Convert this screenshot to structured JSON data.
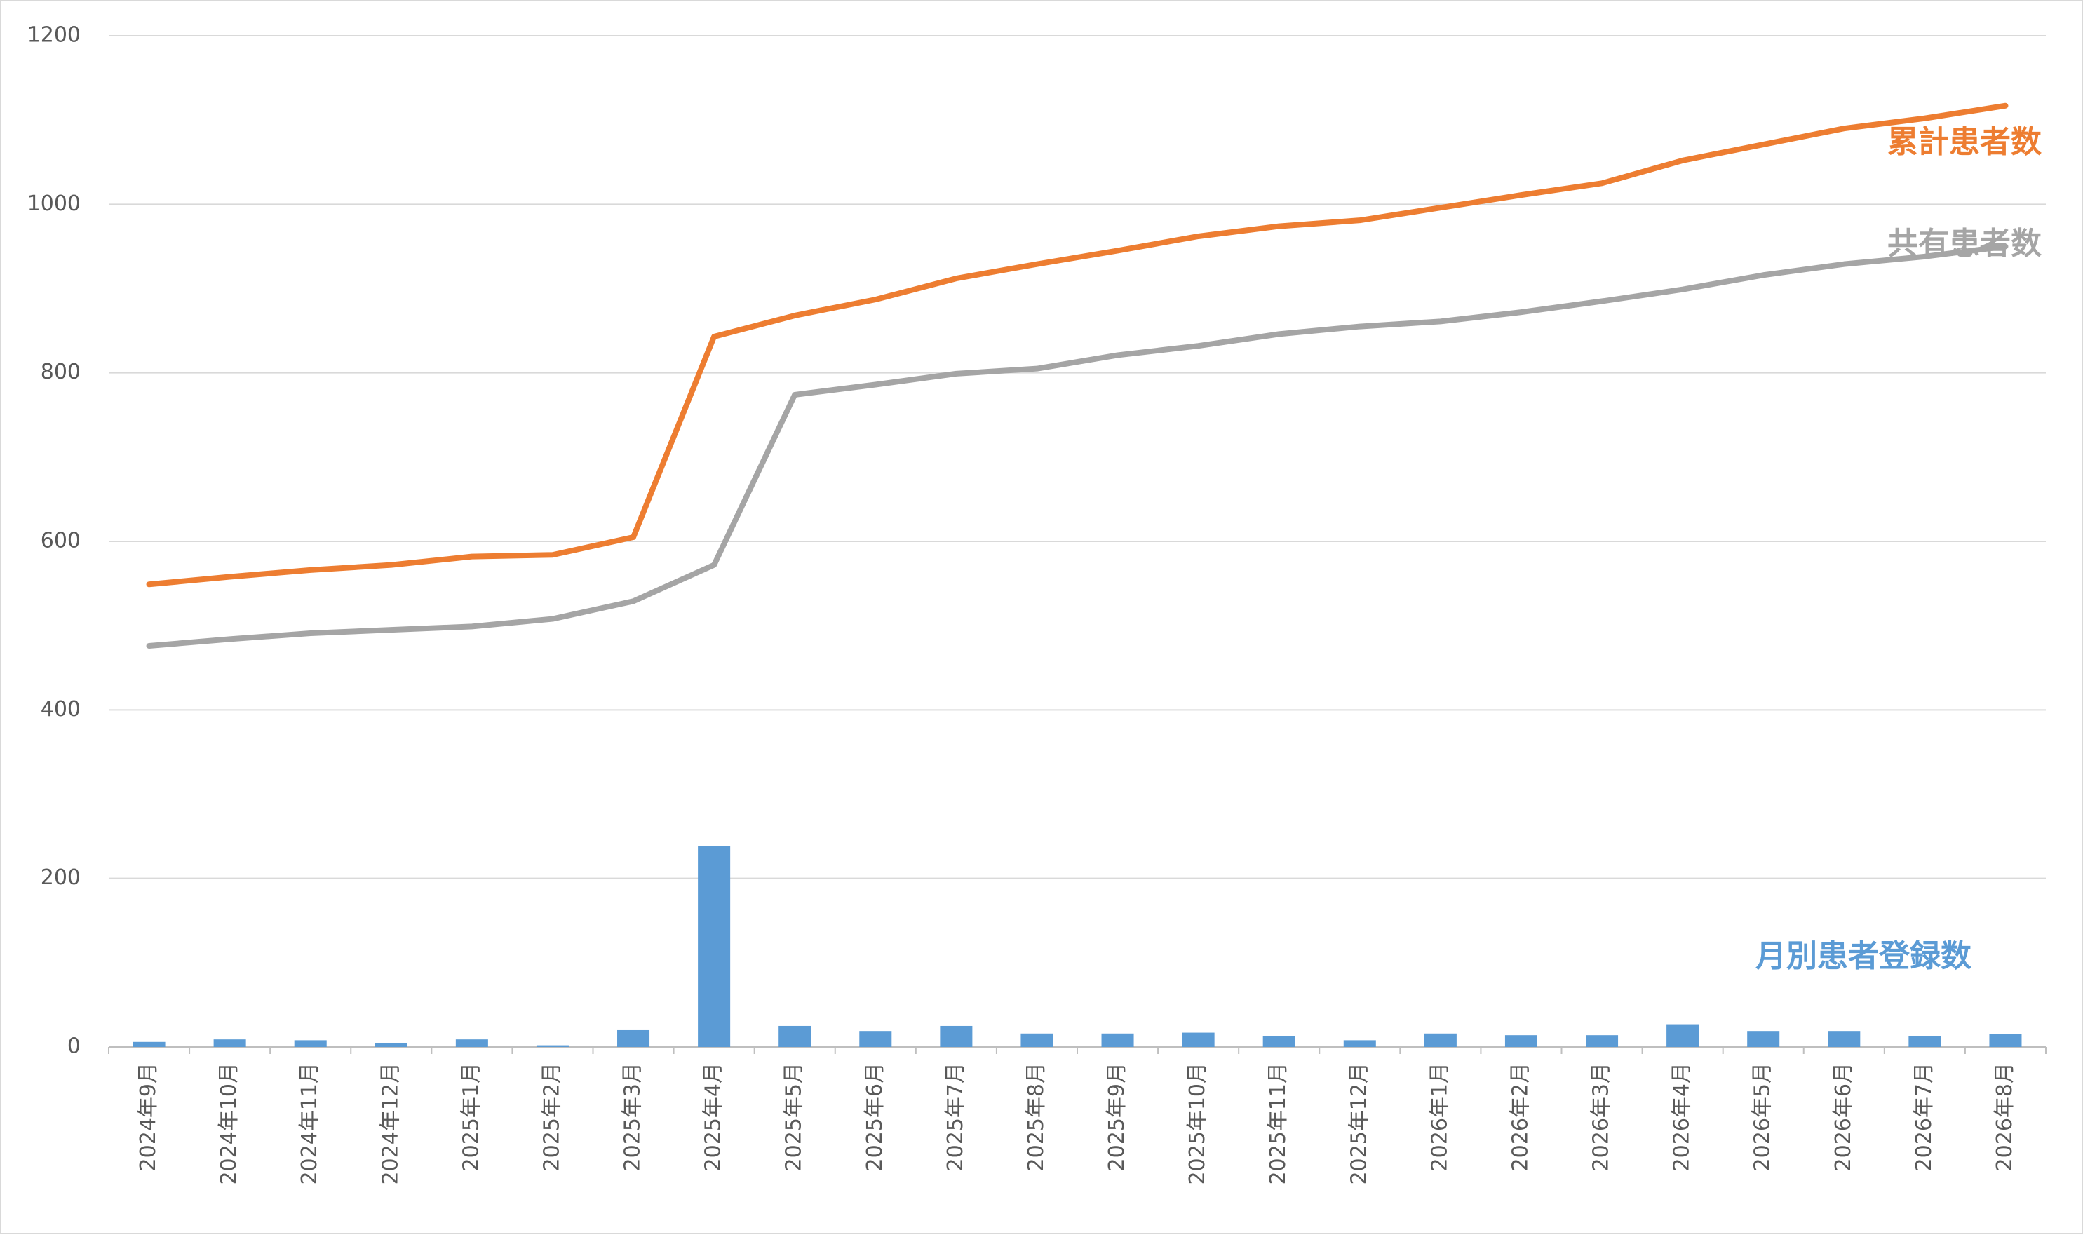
{
  "chart_data": {
    "type": "combo",
    "categories": [
      "2024年9月",
      "2024年10月",
      "2024年11月",
      "2024年12月",
      "2025年1月",
      "2025年2月",
      "2025年3月",
      "2025年4月",
      "2025年5月",
      "2025年6月",
      "2025年7月",
      "2025年8月",
      "2025年9月",
      "2025年10月",
      "2025年11月",
      "2025年12月",
      "2026年1月",
      "2026年2月",
      "2026年3月",
      "2026年4月",
      "2026年5月",
      "2026年6月",
      "2026年7月",
      "2026年8月"
    ],
    "series": [
      {
        "name": "月別患者登録数",
        "type": "bar",
        "color": "#5b9bd5",
        "values": [
          6,
          9,
          8,
          5,
          9,
          2,
          20,
          238,
          25,
          19,
          25,
          16,
          16,
          17,
          13,
          8,
          16,
          14,
          14,
          27,
          19,
          19,
          13,
          15
        ]
      },
      {
        "name": "累計患者数",
        "type": "line",
        "color": "#ed7d31",
        "values": [
          549,
          558,
          566,
          572,
          582,
          584,
          605,
          843,
          868,
          887,
          912,
          929,
          945,
          962,
          974,
          981,
          996,
          1011,
          1025,
          1052,
          1071,
          1090,
          1102,
          1117
        ]
      },
      {
        "name": "共有患者数",
        "type": "line",
        "color": "#a5a5a5",
        "values": [
          476,
          484,
          491,
          495,
          499,
          508,
          529,
          572,
          774,
          786,
          799,
          805,
          821,
          832,
          846,
          855,
          861,
          872,
          885,
          899,
          916,
          929,
          938,
          950
        ]
      }
    ],
    "ylim": [
      0,
      1200
    ],
    "yticks": [
      0,
      200,
      400,
      600,
      800,
      1000,
      1200
    ],
    "grid": true
  }
}
